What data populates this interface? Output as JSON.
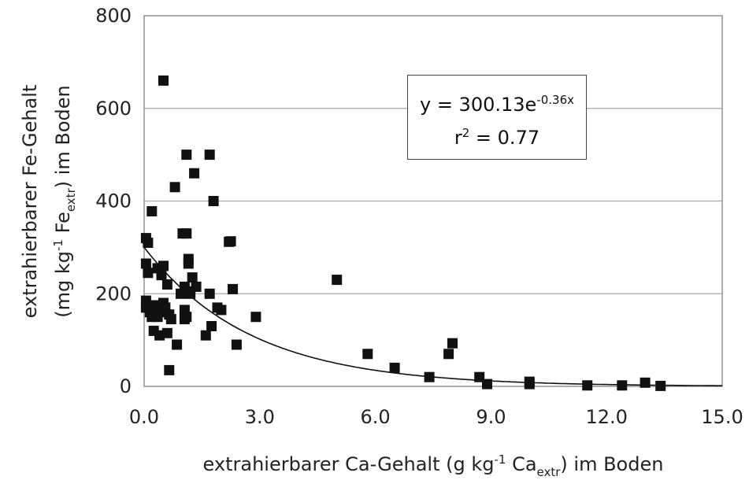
{
  "chart_data": {
    "type": "scatter",
    "title": "",
    "xlabel": {
      "pre": "extrahierbarer Ca-Gehalt (g kg",
      "sup": "-1",
      "mid": " Ca",
      "sub": "extr",
      "post": ") im Boden"
    },
    "ylabel": {
      "line1": "extrahierbarer Fe-Gehalt",
      "line2": {
        "pre": "(mg kg",
        "sup": "-1",
        "mid": " Fe",
        "sub": "extr",
        "post": ") im Boden"
      }
    },
    "xlim": [
      0,
      15
    ],
    "ylim": [
      0,
      800
    ],
    "x_ticks": [
      "0.0",
      "3.0",
      "6.0",
      "9.0",
      "12.0",
      "15.0"
    ],
    "y_ticks": [
      "0",
      "200",
      "400",
      "600",
      "800"
    ],
    "grid": {
      "horizontal": true,
      "vertical": false
    },
    "marker": "square",
    "marker_color": "#111111",
    "trendline": {
      "type": "exponential",
      "a": 300.13,
      "b": -0.36
    },
    "annotation": {
      "eq_pre": "y = 300.13e",
      "eq_sup": "-0.36x",
      "r_pre": "r",
      "r_sup": "2",
      "r_post": " = 0.77"
    },
    "series": [
      {
        "points": [
          [
            0.5,
            660
          ],
          [
            0.05,
            320
          ],
          [
            0.1,
            310
          ],
          [
            0.05,
            265
          ],
          [
            0.1,
            245
          ],
          [
            0.2,
            378
          ],
          [
            0.35,
            255
          ],
          [
            0.45,
            240
          ],
          [
            0.5,
            260
          ],
          [
            0.6,
            220
          ],
          [
            0.3,
            175
          ],
          [
            0.4,
            165
          ],
          [
            0.2,
            150
          ],
          [
            0.05,
            185
          ],
          [
            0.05,
            170
          ],
          [
            0.15,
            160
          ],
          [
            0.25,
            155
          ],
          [
            0.35,
            150
          ],
          [
            0.45,
            160
          ],
          [
            0.5,
            180
          ],
          [
            0.55,
            170
          ],
          [
            0.65,
            155
          ],
          [
            0.7,
            145
          ],
          [
            0.25,
            120
          ],
          [
            0.4,
            110
          ],
          [
            0.6,
            115
          ],
          [
            0.85,
            90
          ],
          [
            0.65,
            35
          ],
          [
            1.1,
            500
          ],
          [
            1.3,
            460
          ],
          [
            0.8,
            430
          ],
          [
            1.0,
            330
          ],
          [
            1.1,
            330
          ],
          [
            1.15,
            275
          ],
          [
            1.15,
            265
          ],
          [
            1.05,
            215
          ],
          [
            1.15,
            205
          ],
          [
            1.25,
            235
          ],
          [
            1.35,
            215
          ],
          [
            1.2,
            200
          ],
          [
            0.95,
            200
          ],
          [
            1.05,
            165
          ],
          [
            1.1,
            150
          ],
          [
            1.05,
            145
          ],
          [
            1.7,
            500
          ],
          [
            1.8,
            400
          ],
          [
            1.7,
            200
          ],
          [
            1.9,
            170
          ],
          [
            2.0,
            165
          ],
          [
            1.75,
            130
          ],
          [
            1.6,
            110
          ],
          [
            2.2,
            312
          ],
          [
            2.25,
            313
          ],
          [
            2.3,
            210
          ],
          [
            2.4,
            90
          ],
          [
            2.9,
            150
          ],
          [
            5.0,
            230
          ],
          [
            5.8,
            70
          ],
          [
            6.5,
            40
          ],
          [
            7.4,
            20
          ],
          [
            7.9,
            70
          ],
          [
            8.0,
            93
          ],
          [
            8.7,
            20
          ],
          [
            8.9,
            5
          ],
          [
            10.0,
            10
          ],
          [
            10.0,
            5
          ],
          [
            11.5,
            2
          ],
          [
            12.4,
            2
          ],
          [
            13.0,
            8
          ],
          [
            13.4,
            1
          ]
        ]
      }
    ]
  }
}
